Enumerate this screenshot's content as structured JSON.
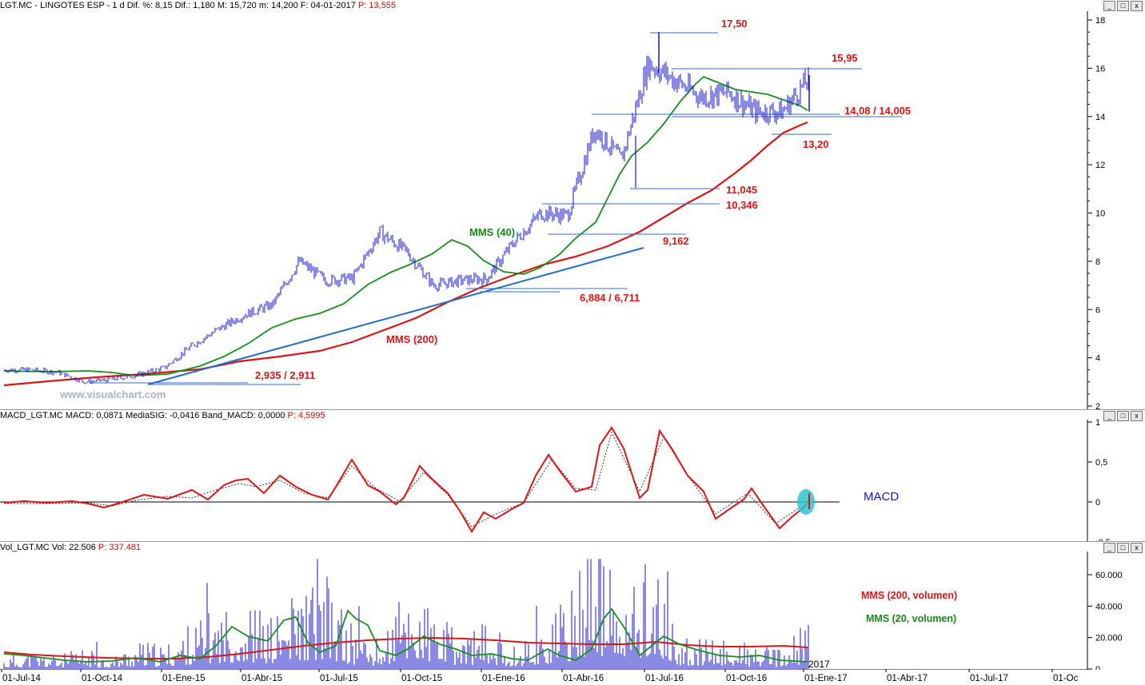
{
  "price_panel": {
    "header": {
      "text": "LGT.MC - LINGOTES ESP - 1 d Dif. %: 8,15 Dif.: 1,180 M: 15,720 m: 14,200 F: 04-01-2017",
      "p_text": "P: 13,555"
    },
    "watermark": "www.visualchart.com",
    "y_ticks": [
      "18",
      "16",
      "14",
      "12",
      "10",
      "8",
      "6",
      "4",
      "2"
    ],
    "labels": {
      "l1750": "17,50",
      "l1595": "15,95",
      "l1408": "14,08 / 14,005",
      "l1320": "13,20",
      "l11045": "11,045",
      "l10346": "10,346",
      "l9162": "9,162",
      "l6884": "6,884 / 6,711",
      "l2935": "2,935 / 2,911",
      "mms40": "MMS (40)",
      "mms200": "MMS (200)"
    }
  },
  "macd_panel": {
    "header": {
      "text": "MACD_LGT.MC MACD: 0,0871 MediaSIG: -0,0416 Band_MACD: 0,0000",
      "p_text": "P: 4,5995"
    },
    "y_ticks": [
      "1",
      "0,5",
      "0",
      "-0,5"
    ],
    "label": "MACD"
  },
  "vol_panel": {
    "header": {
      "text": "Vol_LGT.MC Vol: 22.506",
      "p_text": "P: 337.481"
    },
    "y_ticks": [
      "60.000",
      "40.000",
      "20.000",
      "0"
    ],
    "legend_200": "MMS (200, volumen)",
    "legend_20": "MMS (20, volumen)"
  },
  "x_axis": {
    "labels": [
      "01-Jul-14",
      "01-Oct-14",
      "01-Ene-15",
      "01-Abr-15",
      "01-Jul-15",
      "01-Oct-15",
      "01-Ene-16",
      "01-Abr-16",
      "01-Jul-16",
      "01-Oct-16",
      "01-Ene-17",
      "01-Abr-17",
      "01-Jul-17",
      "01-Oc"
    ],
    "year_label": "2017"
  },
  "window_buttons": {
    "min": "_",
    "max": "□",
    "close": "x"
  },
  "colors": {
    "price": "#1515c8",
    "mms40": "#15901a",
    "mms200": "#dd1515",
    "trend": "#1d6fc8",
    "level": "#2f6ec8",
    "label_red": "#dd1515",
    "label_green": "#158a15",
    "macd_blue": "#1515c8",
    "highlight": "#2ec4d0"
  },
  "chart_data": [
    {
      "type": "line",
      "title": "LGT.MC - LINGOTES ESP - 1 d",
      "ylim": [
        2,
        18
      ],
      "x": [
        "2014-07-01",
        "2014-08-01",
        "2014-09-01",
        "2014-10-01",
        "2014-11-01",
        "2014-12-01",
        "2015-01-01",
        "2015-02-01",
        "2015-03-01",
        "2015-04-01",
        "2015-05-01",
        "2015-06-01",
        "2015-07-01",
        "2015-08-01",
        "2015-09-01",
        "2015-10-01",
        "2015-11-01",
        "2015-12-01",
        "2016-01-01",
        "2016-02-01",
        "2016-03-01",
        "2016-04-01",
        "2016-05-01",
        "2016-06-01",
        "2016-07-01",
        "2016-08-01",
        "2016-09-01",
        "2016-10-01",
        "2016-11-01",
        "2016-12-01",
        "2017-01-04"
      ],
      "series": [
        {
          "name": "LGT.MC",
          "values": [
            3.5,
            3.5,
            3.4,
            3.0,
            3.1,
            3.3,
            3.6,
            4.5,
            5.2,
            5.8,
            6.2,
            8.0,
            7.2,
            7.3,
            9.2,
            8.4,
            7.0,
            7.2,
            7.3,
            8.8,
            10.0,
            9.9,
            13.5,
            12.2,
            16.2,
            15.5,
            14.8,
            15.0,
            14.2,
            14.2,
            15.6
          ]
        },
        {
          "name": "MMS (40)",
          "values": [
            3.5,
            3.5,
            3.5,
            3.3,
            3.2,
            3.2,
            3.3,
            3.9,
            4.7,
            5.4,
            5.9,
            6.8,
            7.5,
            7.6,
            8.4,
            8.6,
            7.9,
            7.4,
            7.3,
            7.8,
            9.2,
            9.9,
            11.6,
            13.2,
            15.0,
            15.3,
            15.1,
            14.9,
            14.6,
            14.2,
            14.4
          ]
        },
        {
          "name": "MMS (200)",
          "values": [
            2.9,
            3.0,
            3.1,
            3.2,
            3.2,
            3.2,
            3.2,
            3.3,
            3.5,
            3.8,
            4.1,
            4.5,
            5.1,
            5.6,
            6.2,
            6.7,
            7.0,
            7.3,
            7.5,
            7.8,
            8.2,
            8.7,
            9.5,
            10.5,
            11.5,
            12.2,
            12.8,
            13.3,
            13.6,
            13.7,
            13.8
          ]
        }
      ],
      "levels": [
        17.5,
        15.95,
        14.08,
        14.005,
        13.2,
        11.045,
        10.346,
        9.162,
        6.884,
        6.711,
        2.935,
        2.911
      ]
    },
    {
      "type": "line",
      "title": "MACD_LGT.MC",
      "ylim": [
        -0.5,
        1
      ],
      "x": [
        "2014-07-01",
        "2014-08-01",
        "2014-09-01",
        "2014-10-01",
        "2014-11-01",
        "2014-12-01",
        "2015-01-01",
        "2015-02-01",
        "2015-03-01",
        "2015-04-01",
        "2015-05-01",
        "2015-06-01",
        "2015-07-01",
        "2015-08-01",
        "2015-09-01",
        "2015-10-01",
        "2015-11-01",
        "2015-12-01",
        "2016-01-01",
        "2016-02-01",
        "2016-03-01",
        "2016-04-01",
        "2016-05-01",
        "2016-06-01",
        "2016-07-01",
        "2016-08-01",
        "2016-09-01",
        "2016-10-01",
        "2016-11-01",
        "2016-12-01",
        "2017-01-04"
      ],
      "series": [
        {
          "name": "MACD",
          "values": [
            0.0,
            0.0,
            0.0,
            -0.03,
            0.0,
            0.05,
            0.1,
            0.05,
            0.28,
            0.1,
            0.1,
            0.18,
            0.45,
            0.2,
            0.0,
            0.45,
            0.1,
            -0.1,
            -0.15,
            0.2,
            0.55,
            0.05,
            0.9,
            0.0,
            0.85,
            0.0,
            -0.12,
            0.0,
            0.15,
            -0.15,
            0.08
          ]
        },
        {
          "name": "MediaSIG",
          "values": [
            0.0,
            0.0,
            0.0,
            -0.02,
            0.0,
            0.04,
            0.08,
            0.06,
            0.24,
            0.12,
            0.1,
            0.16,
            0.4,
            0.22,
            0.02,
            0.4,
            0.12,
            -0.08,
            -0.14,
            0.16,
            0.5,
            0.08,
            0.86,
            0.05,
            0.8,
            0.04,
            -0.1,
            0.0,
            0.12,
            -0.13,
            -0.04
          ]
        }
      ]
    },
    {
      "type": "bar",
      "title": "Vol_LGT.MC",
      "ylim": [
        0,
        70000
      ],
      "x": [
        "2014-07-01",
        "2014-08-01",
        "2014-09-01",
        "2014-10-01",
        "2014-11-01",
        "2014-12-01",
        "2015-01-01",
        "2015-02-01",
        "2015-03-01",
        "2015-04-01",
        "2015-05-01",
        "2015-06-01",
        "2015-07-01",
        "2015-08-01",
        "2015-09-01",
        "2015-10-01",
        "2015-11-01",
        "2015-12-01",
        "2016-01-01",
        "2016-02-01",
        "2016-03-01",
        "2016-04-01",
        "2016-05-01",
        "2016-06-01",
        "2016-07-01",
        "2016-08-01",
        "2016-09-01",
        "2016-10-01",
        "2016-11-01",
        "2016-12-01",
        "2017-01-04"
      ],
      "series": [
        {
          "name": "Vol",
          "values": [
            5000,
            8000,
            6000,
            9000,
            5000,
            12000,
            10000,
            20000,
            25000,
            30000,
            22000,
            35000,
            40000,
            18000,
            12000,
            38000,
            25000,
            15000,
            20000,
            10000,
            18000,
            30000,
            65000,
            25000,
            55000,
            15000,
            12000,
            14000,
            10000,
            8000,
            22506
          ]
        },
        {
          "name": "MMS (200, volumen)",
          "values": [
            10000,
            9500,
            9000,
            9000,
            9000,
            9000,
            9500,
            12000,
            13000,
            14000,
            16000,
            18000,
            19500,
            20000,
            20000,
            20000,
            19500,
            19500,
            19000,
            18500,
            18000,
            17500,
            18000,
            17500,
            17000,
            16500,
            16000,
            15500,
            15500,
            15000,
            14000
          ]
        },
        {
          "name": "MMS (20, volumen)",
          "values": [
            8000,
            7000,
            6000,
            7000,
            6000,
            8000,
            10000,
            18000,
            25000,
            22000,
            20000,
            30000,
            32000,
            16000,
            12000,
            22000,
            18000,
            12000,
            15000,
            10000,
            14000,
            20000,
            38000,
            22000,
            30000,
            12000,
            10000,
            11000,
            9000,
            7000,
            9000
          ]
        }
      ]
    }
  ]
}
